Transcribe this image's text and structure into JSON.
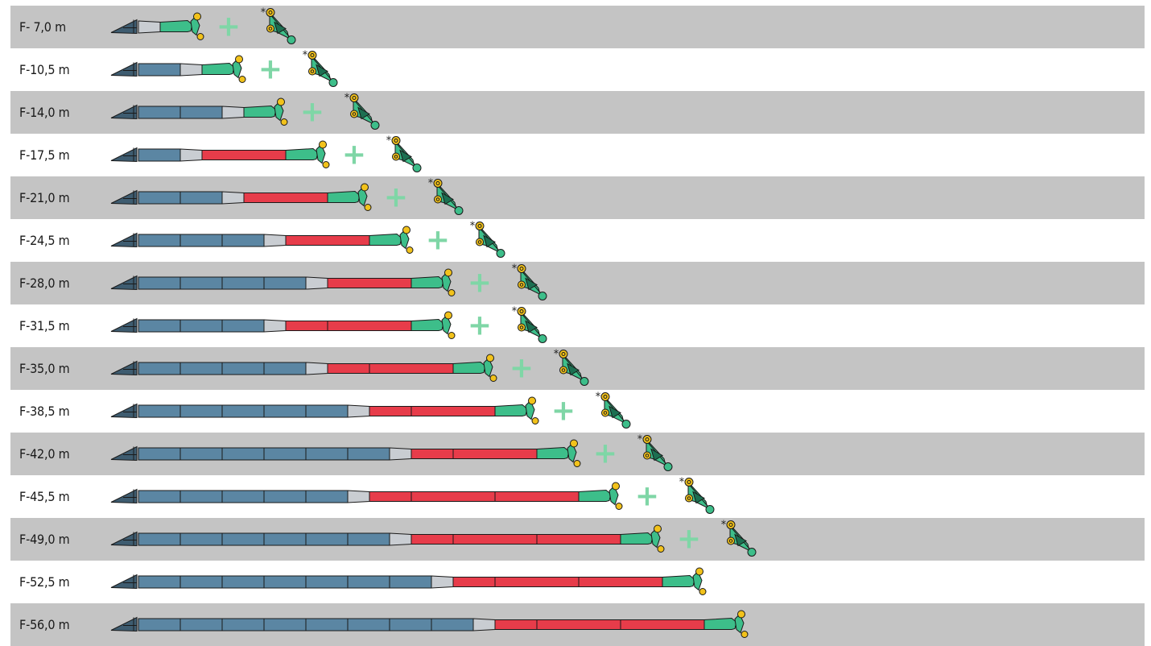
{
  "configurations": [
    {
      "label": "F- 7,0 m",
      "base_sections": 0,
      "red_sections": 0,
      "extension": true
    },
    {
      "label": "F-10,5 m",
      "base_sections": 1,
      "red_sections": 0,
      "extension": true
    },
    {
      "label": "F-14,0 m",
      "base_sections": 2,
      "red_sections": 0,
      "extension": true
    },
    {
      "label": "F-17,5 m",
      "base_sections": 1,
      "red_sections": 1,
      "extension": true
    },
    {
      "label": "F-21,0 m",
      "base_sections": 2,
      "red_sections": 1,
      "extension": true
    },
    {
      "label": "F-24,5 m",
      "base_sections": 3,
      "red_sections": 1,
      "extension": true
    },
    {
      "label": "F-28,0 m",
      "base_sections": 4,
      "red_sections": 1,
      "extension": true
    },
    {
      "label": "F-31,5 m",
      "base_sections": 3,
      "red_sections": 2,
      "extension": true
    },
    {
      "label": "F-35,0 m",
      "base_sections": 4,
      "red_sections": 2,
      "extension": true
    },
    {
      "label": "F-38,5 m",
      "base_sections": 5,
      "red_sections": 2,
      "extension": true
    },
    {
      "label": "F-42,0 m",
      "base_sections": 6,
      "red_sections": 2,
      "extension": true
    },
    {
      "label": "F-45,5 m",
      "base_sections": 5,
      "red_sections": 3,
      "extension": true
    },
    {
      "label": "F-49,0 m",
      "base_sections": 6,
      "red_sections": 3,
      "extension": true
    },
    {
      "label": "F-52,5 m",
      "base_sections": 7,
      "red_sections": 3,
      "extension": false
    },
    {
      "label": "F-56,0 m",
      "base_sections": 8,
      "red_sections": 3,
      "extension": false
    }
  ],
  "plus_symbol": "+",
  "asterisk_symbol": "*",
  "colors": {
    "row_shade": "#c4c4c4",
    "base_section": "#5b86a3",
    "base_butt": "#3e5c70",
    "transition": "#c9cdd2",
    "red_section": "#e73c4a",
    "head_section": "#3dbe8a",
    "head_dark": "#1c6f51",
    "hook": "#f2c21b",
    "plus": "#7fd6a6",
    "outline": "#1a1a1a"
  }
}
